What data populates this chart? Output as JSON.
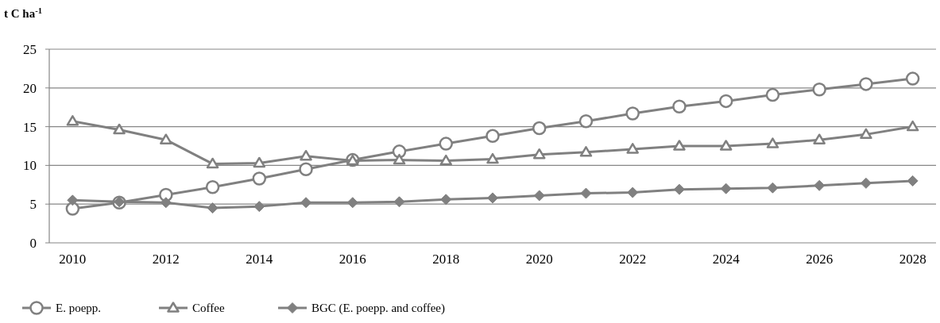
{
  "chart_data": {
    "type": "line",
    "ylabel": "t C ha$^{-1}$",
    "categories": [
      "2010",
      null,
      "2012",
      null,
      "2014",
      null,
      "2016",
      null,
      "2018",
      null,
      "2020",
      null,
      "2022",
      null,
      "2024",
      null,
      "2026",
      null,
      "2028"
    ],
    "series": [
      {
        "name": "E. poepp.",
        "color": "#808080",
        "marker": "circle",
        "values": [
          4.4,
          5.2,
          6.2,
          7.2,
          8.3,
          9.5,
          10.7,
          11.8,
          12.8,
          13.8,
          14.8,
          15.7,
          16.7,
          17.6,
          18.3,
          19.1,
          19.8,
          20.5,
          21.2
        ]
      },
      {
        "name": "Coffee",
        "color": "#808080",
        "marker": "triangle",
        "values": [
          15.7,
          14.6,
          13.3,
          10.2,
          10.3,
          11.2,
          10.6,
          10.7,
          10.6,
          10.8,
          11.4,
          11.7,
          12.1,
          12.5,
          12.5,
          12.8,
          13.3,
          14.0,
          15.0
        ]
      },
      {
        "name": "BGC (E. poepp. and coffee)",
        "color": "#808080",
        "marker": "diamond",
        "values": [
          5.5,
          5.3,
          5.2,
          4.5,
          4.7,
          5.2,
          5.2,
          5.3,
          5.6,
          5.8,
          6.1,
          6.4,
          6.5,
          6.9,
          7.0,
          7.1,
          7.4,
          7.7,
          8.0
        ]
      }
    ],
    "ylim": [
      0,
      25
    ],
    "yticks": [
      0,
      5,
      10,
      15,
      20,
      25
    ],
    "grid": "y",
    "legend": "bottom"
  }
}
